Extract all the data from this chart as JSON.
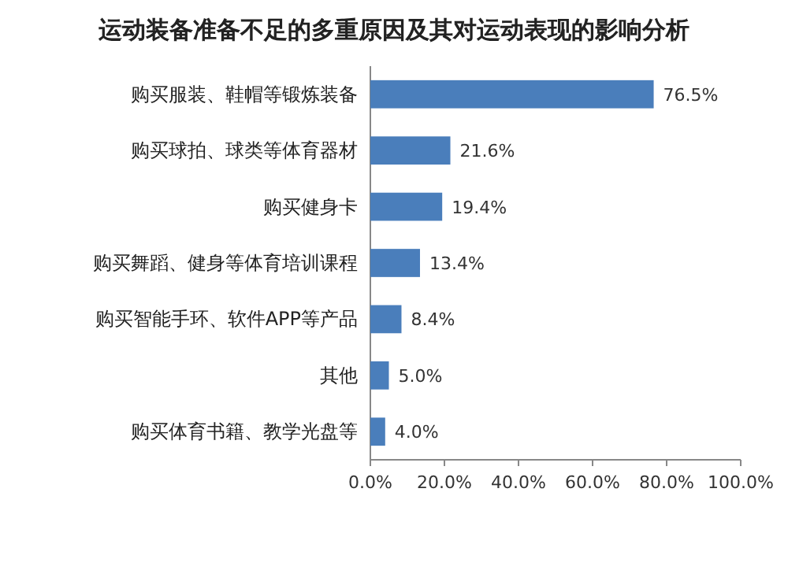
{
  "chart_data": {
    "type": "bar",
    "orientation": "horizontal",
    "title": "运动装备准备不足的多重原因及其对运动表现的影响分析",
    "categories": [
      "购买服装、鞋帽等锻炼装备",
      "购买球拍、球类等体育器材",
      "购买健身卡",
      "购买舞蹈、健身等体育培训课程",
      "购买智能手环、软件APP等产品",
      "其他",
      "购买体育书籍、教学光盘等"
    ],
    "values": [
      76.5,
      21.6,
      19.4,
      13.4,
      8.4,
      5.0,
      4.0
    ],
    "value_labels": [
      "76.5%",
      "21.6%",
      "19.4%",
      "13.4%",
      "8.4%",
      "5.0%",
      "4.0%"
    ],
    "color": "#4a7ebb",
    "xlim": [
      0,
      100
    ],
    "xticks": [
      {
        "value": 0,
        "label": "0.0%"
      },
      {
        "value": 20,
        "label": "20.0%"
      },
      {
        "value": 40,
        "label": "40.0%"
      },
      {
        "value": 60,
        "label": "60.0%"
      },
      {
        "value": 80,
        "label": "80.0%"
      },
      {
        "value": 100,
        "label": "100.0%"
      }
    ]
  }
}
